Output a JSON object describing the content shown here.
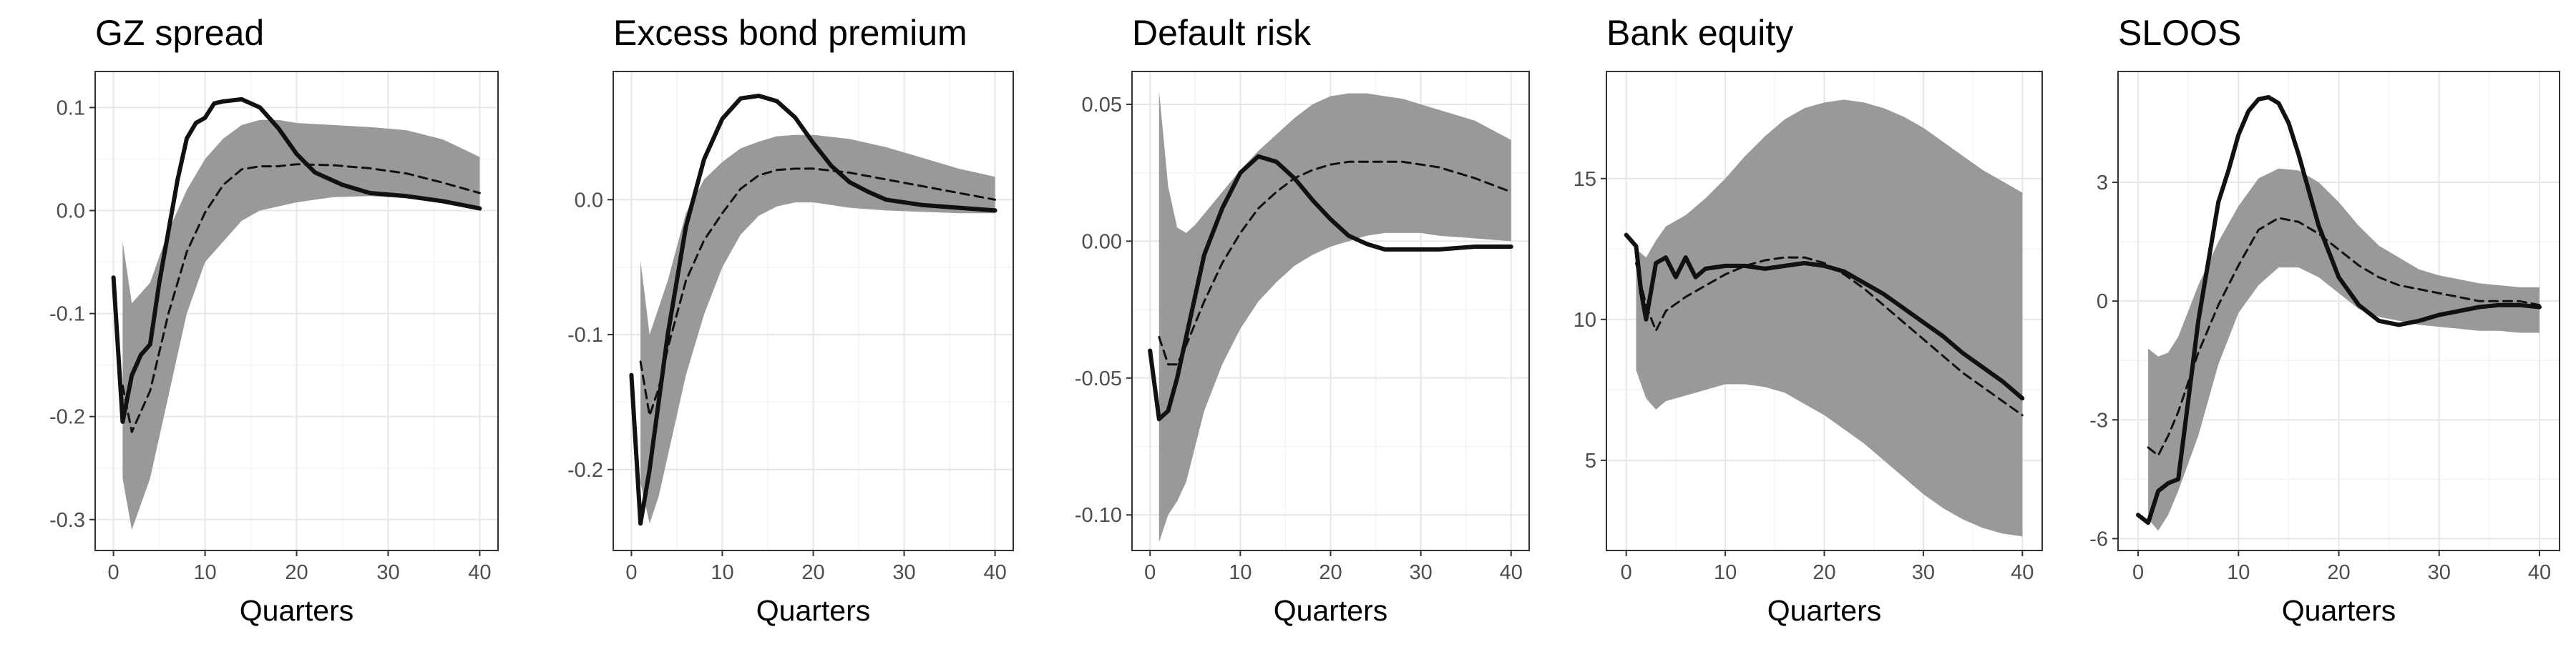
{
  "chart_data": [
    {
      "type": "line",
      "title": "GZ spread",
      "xlabel": "Quarters",
      "ylabel": "",
      "xlim": [
        -2,
        42
      ],
      "ylim": [
        -0.33,
        0.135
      ],
      "xticks": [
        0,
        10,
        20,
        30,
        40
      ],
      "yticks": [
        -0.3,
        -0.2,
        -0.1,
        0.0,
        0.1
      ],
      "ytick_labels": [
        "-0.3",
        "-0.2",
        "-0.1",
        "0.0",
        "0.1"
      ],
      "grid": true,
      "series": [
        {
          "name": "solid",
          "style": "solid",
          "x": [
            0,
            1,
            2,
            3,
            4,
            5,
            6,
            7,
            8,
            9,
            10,
            11,
            12,
            14,
            16,
            18,
            20,
            22,
            25,
            28,
            32,
            36,
            40
          ],
          "values": [
            -0.065,
            -0.205,
            -0.16,
            -0.14,
            -0.13,
            -0.07,
            -0.02,
            0.03,
            0.07,
            0.085,
            0.09,
            0.104,
            0.106,
            0.108,
            0.1,
            0.08,
            0.055,
            0.037,
            0.025,
            0.017,
            0.014,
            0.009,
            0.002
          ]
        },
        {
          "name": "median",
          "style": "dashed",
          "x": [
            1,
            2,
            4,
            6,
            8,
            10,
            12,
            14,
            16,
            18,
            20,
            24,
            28,
            32,
            36,
            40
          ],
          "values": [
            -0.17,
            -0.215,
            -0.175,
            -0.1,
            -0.04,
            -0.002,
            0.025,
            0.04,
            0.043,
            0.043,
            0.045,
            0.044,
            0.041,
            0.036,
            0.027,
            0.017
          ]
        },
        {
          "name": "band_upper",
          "style": "band",
          "x": [
            1,
            2,
            4,
            6,
            8,
            10,
            12,
            14,
            16,
            18,
            20,
            24,
            28,
            32,
            36,
            40
          ],
          "values": [
            -0.03,
            -0.09,
            -0.07,
            -0.02,
            0.02,
            0.05,
            0.07,
            0.083,
            0.088,
            0.088,
            0.085,
            0.083,
            0.081,
            0.078,
            0.069,
            0.052
          ]
        },
        {
          "name": "band_lower",
          "style": "band",
          "x": [
            1,
            2,
            4,
            6,
            8,
            10,
            12,
            14,
            16,
            18,
            20,
            24,
            28,
            32,
            36,
            40
          ],
          "values": [
            -0.26,
            -0.31,
            -0.26,
            -0.18,
            -0.1,
            -0.05,
            -0.03,
            -0.01,
            0.0,
            0.004,
            0.008,
            0.013,
            0.014,
            0.012,
            0.008,
            0.004
          ]
        }
      ]
    },
    {
      "type": "line",
      "title": "Excess bond premium",
      "xlabel": "Quarters",
      "ylabel": "",
      "xlim": [
        -2,
        42
      ],
      "ylim": [
        -0.26,
        0.095
      ],
      "xticks": [
        0,
        10,
        20,
        30,
        40
      ],
      "yticks": [
        -0.2,
        -0.1,
        0.0
      ],
      "ytick_labels": [
        "-0.2",
        "-0.1",
        "0.0"
      ],
      "grid": true,
      "series": [
        {
          "name": "solid",
          "style": "solid",
          "x": [
            0,
            1,
            2,
            3,
            4,
            5,
            6,
            8,
            10,
            12,
            14,
            16,
            18,
            20,
            22,
            24,
            26,
            28,
            32,
            36,
            40
          ],
          "values": [
            -0.13,
            -0.24,
            -0.2,
            -0.15,
            -0.1,
            -0.06,
            -0.02,
            0.03,
            0.06,
            0.075,
            0.077,
            0.073,
            0.061,
            0.042,
            0.025,
            0.013,
            0.006,
            0.0,
            -0.004,
            -0.006,
            -0.008
          ]
        },
        {
          "name": "median",
          "style": "dashed",
          "x": [
            1,
            2,
            3,
            4,
            6,
            8,
            10,
            12,
            14,
            16,
            18,
            20,
            24,
            28,
            32,
            36,
            40
          ],
          "values": [
            -0.12,
            -0.16,
            -0.14,
            -0.11,
            -0.06,
            -0.03,
            -0.01,
            0.008,
            0.018,
            0.022,
            0.023,
            0.023,
            0.02,
            0.015,
            0.01,
            0.005,
            0.0
          ]
        },
        {
          "name": "band_upper",
          "style": "band",
          "x": [
            1,
            2,
            3,
            4,
            6,
            8,
            10,
            12,
            14,
            16,
            18,
            20,
            24,
            28,
            32,
            36,
            40
          ],
          "values": [
            -0.045,
            -0.1,
            -0.08,
            -0.06,
            -0.01,
            0.015,
            0.028,
            0.038,
            0.043,
            0.047,
            0.048,
            0.048,
            0.045,
            0.039,
            0.031,
            0.023,
            0.017
          ]
        },
        {
          "name": "band_lower",
          "style": "band",
          "x": [
            1,
            2,
            3,
            4,
            6,
            8,
            10,
            12,
            14,
            16,
            18,
            20,
            24,
            28,
            32,
            36,
            40
          ],
          "values": [
            -0.21,
            -0.24,
            -0.22,
            -0.19,
            -0.13,
            -0.085,
            -0.05,
            -0.026,
            -0.012,
            -0.005,
            -0.002,
            -0.002,
            -0.006,
            -0.008,
            -0.009,
            -0.01,
            -0.01
          ]
        }
      ]
    },
    {
      "type": "line",
      "title": "Default risk",
      "xlabel": "Quarters",
      "ylabel": "",
      "xlim": [
        -2,
        42
      ],
      "ylim": [
        -0.113,
        0.062
      ],
      "xticks": [
        0,
        10,
        20,
        30,
        40
      ],
      "yticks": [
        -0.1,
        -0.05,
        0.0,
        0.05
      ],
      "ytick_labels": [
        "-0.10",
        "-0.05",
        "0.00",
        "0.05"
      ],
      "grid": true,
      "series": [
        {
          "name": "solid",
          "style": "solid",
          "x": [
            0,
            1,
            2,
            3,
            4,
            5,
            6,
            8,
            10,
            12,
            14,
            16,
            18,
            20,
            22,
            24,
            26,
            28,
            32,
            36,
            40
          ],
          "values": [
            -0.04,
            -0.065,
            -0.062,
            -0.05,
            -0.035,
            -0.02,
            -0.005,
            0.012,
            0.025,
            0.031,
            0.029,
            0.023,
            0.015,
            0.008,
            0.002,
            -0.001,
            -0.003,
            -0.003,
            -0.003,
            -0.002,
            -0.002
          ]
        },
        {
          "name": "median",
          "style": "dashed",
          "x": [
            1,
            2,
            3,
            4,
            6,
            8,
            10,
            12,
            14,
            16,
            18,
            20,
            22,
            24,
            26,
            28,
            32,
            36,
            40
          ],
          "values": [
            -0.035,
            -0.045,
            -0.045,
            -0.038,
            -0.022,
            -0.008,
            0.003,
            0.012,
            0.018,
            0.023,
            0.026,
            0.028,
            0.029,
            0.029,
            0.029,
            0.029,
            0.027,
            0.023,
            0.018
          ]
        },
        {
          "name": "band_upper",
          "style": "band",
          "x": [
            1,
            2,
            3,
            4,
            5,
            6,
            8,
            10,
            12,
            14,
            16,
            18,
            20,
            22,
            24,
            26,
            28,
            30,
            32,
            36,
            40
          ],
          "values": [
            0.055,
            0.02,
            0.005,
            0.003,
            0.006,
            0.01,
            0.018,
            0.026,
            0.033,
            0.039,
            0.045,
            0.05,
            0.053,
            0.054,
            0.054,
            0.053,
            0.052,
            0.05,
            0.048,
            0.044,
            0.037
          ]
        },
        {
          "name": "band_lower",
          "style": "band",
          "x": [
            1,
            2,
            3,
            4,
            5,
            6,
            8,
            10,
            12,
            14,
            16,
            18,
            20,
            22,
            24,
            26,
            28,
            30,
            32,
            36,
            40
          ],
          "values": [
            -0.11,
            -0.1,
            -0.095,
            -0.088,
            -0.075,
            -0.062,
            -0.045,
            -0.032,
            -0.022,
            -0.015,
            -0.009,
            -0.005,
            -0.002,
            0.0,
            0.002,
            0.003,
            0.003,
            0.003,
            0.002,
            0.001,
            0.0
          ]
        }
      ]
    },
    {
      "type": "line",
      "title": "Bank equity",
      "xlabel": "Quarters",
      "ylabel": "",
      "xlim": [
        -2,
        42
      ],
      "ylim": [
        1.8,
        18.8
      ],
      "xticks": [
        0,
        10,
        20,
        30,
        40
      ],
      "yticks": [
        5,
        10,
        15
      ],
      "ytick_labels": [
        "5",
        "10",
        "15"
      ],
      "grid": true,
      "series": [
        {
          "name": "solid",
          "style": "solid",
          "x": [
            0,
            1,
            1.5,
            2,
            3,
            4,
            5,
            6,
            7,
            8,
            10,
            12,
            14,
            16,
            18,
            20,
            22,
            24,
            26,
            28,
            30,
            32,
            34,
            36,
            38,
            40
          ],
          "values": [
            13.0,
            12.6,
            11.0,
            10.0,
            12.0,
            12.2,
            11.5,
            12.2,
            11.5,
            11.8,
            11.9,
            11.9,
            11.8,
            11.9,
            12.0,
            11.9,
            11.7,
            11.3,
            10.9,
            10.4,
            9.9,
            9.4,
            8.8,
            8.3,
            7.8,
            7.2
          ]
        },
        {
          "name": "median",
          "style": "dashed",
          "x": [
            1,
            2,
            3,
            4,
            6,
            8,
            10,
            12,
            14,
            16,
            18,
            20,
            22,
            24,
            26,
            28,
            30,
            32,
            34,
            36,
            38,
            40
          ],
          "values": [
            12.0,
            10.5,
            9.6,
            10.3,
            10.8,
            11.2,
            11.6,
            11.9,
            12.1,
            12.2,
            12.2,
            12.0,
            11.6,
            11.1,
            10.5,
            9.9,
            9.3,
            8.7,
            8.1,
            7.6,
            7.1,
            6.6
          ]
        },
        {
          "name": "band_upper",
          "style": "band",
          "x": [
            1,
            2,
            3,
            4,
            6,
            8,
            10,
            12,
            14,
            16,
            18,
            20,
            22,
            24,
            26,
            28,
            30,
            32,
            34,
            36,
            38,
            40
          ],
          "values": [
            12.5,
            12.2,
            12.8,
            13.3,
            13.7,
            14.3,
            15.0,
            15.8,
            16.5,
            17.1,
            17.5,
            17.7,
            17.8,
            17.7,
            17.5,
            17.2,
            16.8,
            16.3,
            15.8,
            15.3,
            14.9,
            14.5
          ]
        },
        {
          "name": "band_lower",
          "style": "band",
          "x": [
            1,
            2,
            3,
            4,
            6,
            8,
            10,
            12,
            14,
            16,
            18,
            20,
            22,
            24,
            26,
            28,
            30,
            32,
            34,
            36,
            38,
            40
          ],
          "values": [
            8.2,
            7.2,
            6.8,
            7.1,
            7.3,
            7.5,
            7.7,
            7.7,
            7.6,
            7.4,
            7.0,
            6.6,
            6.1,
            5.6,
            5.0,
            4.4,
            3.8,
            3.3,
            2.9,
            2.6,
            2.4,
            2.3
          ]
        }
      ]
    },
    {
      "type": "line",
      "title": "SLOOS",
      "xlabel": "Quarters",
      "ylabel": "",
      "xlim": [
        -2,
        42
      ],
      "ylim": [
        -6.3,
        5.8
      ],
      "xticks": [
        0,
        10,
        20,
        30,
        40
      ],
      "yticks": [
        -6,
        -3,
        0,
        3
      ],
      "ytick_labels": [
        "-6",
        "-3",
        "0",
        "3"
      ],
      "grid": true,
      "series": [
        {
          "name": "solid",
          "style": "solid",
          "x": [
            0,
            1,
            2,
            3,
            4,
            5,
            6,
            7,
            8,
            9,
            10,
            11,
            12,
            13,
            14,
            15,
            16,
            17,
            18,
            20,
            22,
            24,
            26,
            28,
            30,
            32,
            34,
            36,
            38,
            40
          ],
          "values": [
            -5.4,
            -5.6,
            -4.8,
            -4.6,
            -4.5,
            -2.5,
            -0.5,
            1.0,
            2.5,
            3.3,
            4.2,
            4.8,
            5.1,
            5.15,
            5.0,
            4.5,
            3.7,
            2.8,
            1.9,
            0.6,
            -0.1,
            -0.5,
            -0.6,
            -0.5,
            -0.35,
            -0.25,
            -0.15,
            -0.1,
            -0.1,
            -0.15
          ]
        },
        {
          "name": "median",
          "style": "dashed",
          "x": [
            1,
            2,
            3,
            4,
            6,
            8,
            10,
            12,
            14,
            16,
            18,
            20,
            22,
            24,
            26,
            28,
            30,
            32,
            34,
            36,
            38,
            40
          ],
          "values": [
            -3.7,
            -3.9,
            -3.4,
            -2.8,
            -1.3,
            -0.1,
            0.9,
            1.8,
            2.1,
            2.0,
            1.7,
            1.3,
            0.9,
            0.6,
            0.4,
            0.3,
            0.2,
            0.1,
            0.0,
            0.0,
            0.0,
            -0.1
          ]
        },
        {
          "name": "band_upper",
          "style": "band",
          "x": [
            1,
            2,
            3,
            4,
            6,
            8,
            10,
            12,
            14,
            16,
            18,
            20,
            22,
            24,
            26,
            28,
            30,
            32,
            34,
            36,
            38,
            40
          ],
          "values": [
            -1.2,
            -1.4,
            -1.3,
            -0.9,
            0.4,
            1.5,
            2.4,
            3.1,
            3.35,
            3.3,
            3.0,
            2.5,
            1.9,
            1.4,
            1.1,
            0.8,
            0.65,
            0.55,
            0.45,
            0.4,
            0.35,
            0.35
          ]
        },
        {
          "name": "band_lower",
          "style": "band",
          "x": [
            1,
            2,
            3,
            4,
            6,
            8,
            10,
            12,
            14,
            16,
            18,
            20,
            22,
            24,
            26,
            28,
            30,
            32,
            34,
            36,
            38,
            40
          ],
          "values": [
            -5.5,
            -5.8,
            -5.4,
            -4.8,
            -3.4,
            -1.6,
            -0.3,
            0.4,
            0.85,
            0.85,
            0.6,
            0.2,
            -0.2,
            -0.4,
            -0.5,
            -0.6,
            -0.65,
            -0.7,
            -0.75,
            -0.75,
            -0.8,
            -0.8
          ]
        }
      ]
    }
  ],
  "colors": {
    "band": "#999999",
    "line": "#111111",
    "grid_major": "#e6e6e6",
    "grid_minor": "#f3f3f3",
    "frame": "#333333"
  }
}
